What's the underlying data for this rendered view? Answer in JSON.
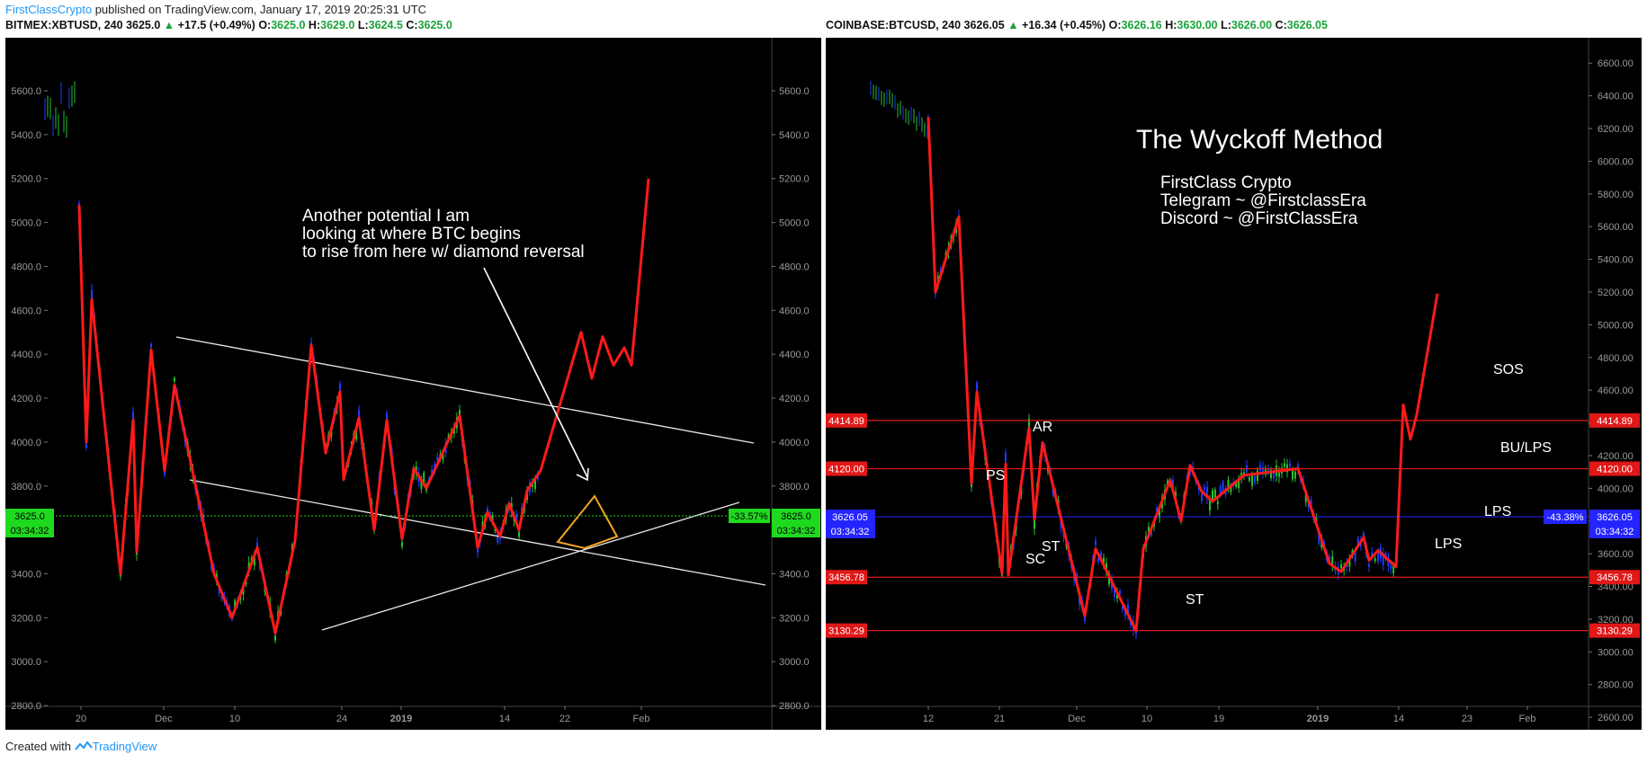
{
  "publish": {
    "author": "FirstClassCrypto",
    "text": "published on TradingView.com, January 17, 2019 20:25:31 UTC"
  },
  "left": {
    "symbol": "BITMEX:XBTUSD, 240",
    "last": "3625.0",
    "change": "+17.5 (+0.49%)",
    "o_label": "O:",
    "o": "3625.0",
    "h_label": "H:",
    "h": "3629.0",
    "l_label": "L:",
    "l": "3624.5",
    "c_label": "C:",
    "c": "3625.0",
    "price_tag": "3625.0",
    "time_tag": "03:34:32",
    "pct_tag": "-33.57%",
    "annotation": [
      "Another potential I am",
      "looking at where BTC begins",
      "to rise from here w/ diamond reversal"
    ]
  },
  "right": {
    "symbol": "COINBASE:BTCUSD, 240",
    "last": "3626.05",
    "change": "+16.34 (+0.45%)",
    "o_label": "O:",
    "o": "3626.16",
    "h_label": "H:",
    "h": "3630.00",
    "l_label": "L:",
    "l": "3626.00",
    "c_label": "C:",
    "c": "3626.05",
    "title": "The Wyckoff Method",
    "info": [
      "FirstClass Crypto",
      "Telegram ~ @FirstclassEra",
      "Discord ~ @FirstClassEra"
    ],
    "levels": [
      "4414.89",
      "4120.00",
      "3456.78",
      "3130.29"
    ],
    "price_tag": "3626.05",
    "time_tag": "03:34:32",
    "pct_tag": "-43.38%",
    "labels": [
      "SOS",
      "AR",
      "BU/LPS",
      "PS",
      "LPS",
      "ST",
      "SC",
      "LPS",
      "ST"
    ]
  },
  "footer": {
    "created": "Created with",
    "brand": "TradingView"
  },
  "colors": {
    "bg": "#000000",
    "up": "#26c22b",
    "down": "#1f3cff",
    "path": "#ff1a1a",
    "level": "#e01818",
    "current_blue": "#2424ff",
    "current_green": "#1fd91f"
  },
  "chart_data": [
    {
      "type": "line",
      "title": "BITMEX:XBTUSD, 240",
      "ylim": [
        2780,
        5780
      ],
      "y_ticks": [
        "2800.0",
        "3000.0",
        "3200.0",
        "3400.0",
        "3600.0",
        "3800.0",
        "4000.0",
        "4200.0",
        "4400.0",
        "4600.0",
        "4800.0",
        "5000.0",
        "5200.0",
        "5400.0",
        "5600.0"
      ],
      "x_ticks": [
        "20",
        "Dec",
        "10",
        "24",
        "2019",
        "14",
        "22",
        "Feb"
      ],
      "series": [
        {
          "values": [
            5080,
            4000,
            4650,
            3400,
            4100,
            3500,
            4420,
            3870,
            4260,
            3400,
            3200,
            3520,
            3130,
            3550,
            4440,
            3950,
            4230,
            3830,
            4110,
            3600,
            4100,
            3560,
            3880,
            3790,
            4120,
            3520,
            3680,
            3570,
            3720,
            3600,
            3780,
            3870,
            4500,
            4290,
            4480,
            4350,
            4430,
            4350,
            5200
          ]
        }
      ]
    },
    {
      "type": "line",
      "title": "COINBASE:BTCUSD, 240",
      "ylim": [
        2370,
        6700
      ],
      "y_ticks": [
        "2600.00",
        "2800.00",
        "3000.00",
        "3200.00",
        "3400.00",
        "3600.00",
        "3800.00",
        "4000.00",
        "4200.00",
        "4400.00",
        "4600.00",
        "4800.00",
        "5000.00",
        "5200.00",
        "5400.00",
        "5600.00",
        "5800.00",
        "6000.00",
        "6200.00",
        "6400.00",
        "6600.00"
      ],
      "x_ticks": [
        "12",
        "21",
        "Dec",
        "10",
        "19",
        "2019",
        "14",
        "23",
        "Feb"
      ],
      "series": [
        {
          "values": [
            6270,
            5200,
            5660,
            4030,
            4590,
            3480,
            4150,
            3470,
            4370,
            3810,
            4280,
            3220,
            3630,
            3130,
            3630,
            4050,
            3800,
            4140,
            3980,
            3920,
            4080,
            4120,
            3540,
            3490,
            3700,
            3560,
            3620,
            3520,
            4510,
            4300,
            4450,
            5190
          ]
        }
      ]
    }
  ]
}
